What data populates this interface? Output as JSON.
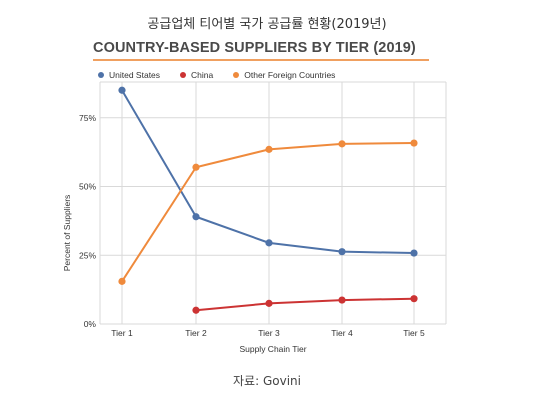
{
  "header": {
    "korean_title": "공급업체 티어별 국가 공급률 현황(2019년)",
    "figure_title": "COUNTRY-BASED SUPPLIERS BY TIER (2019)"
  },
  "source": "자료: Govini",
  "colors": {
    "title_rule": "#f0a060",
    "grid": "#d9d9d9",
    "axis_text": "#333333"
  },
  "chart_data": {
    "type": "line",
    "categories": [
      "Tier 1",
      "Tier 2",
      "Tier 3",
      "Tier 4",
      "Tier 5"
    ],
    "series": [
      {
        "name": "United States",
        "color": "#4e72a8",
        "values": [
          85,
          39,
          29.5,
          26.3,
          25.8
        ]
      },
      {
        "name": "China",
        "color": "#cc3333",
        "values": [
          null,
          5,
          7.5,
          8.7,
          9.2
        ]
      },
      {
        "name": "Other Foreign Countries",
        "color": "#ef8a3c",
        "values": [
          15.5,
          57,
          63.5,
          65.5,
          65.8
        ]
      }
    ],
    "xlabel": "Supply Chain Tier",
    "ylabel": "Percent of Suppliers",
    "yticks": [
      0,
      25,
      50,
      75
    ],
    "ytick_labels": [
      "0%",
      "25%",
      "50%",
      "75%"
    ],
    "ylim": [
      0,
      88
    ],
    "grid": true,
    "legend_position": "top-left"
  }
}
